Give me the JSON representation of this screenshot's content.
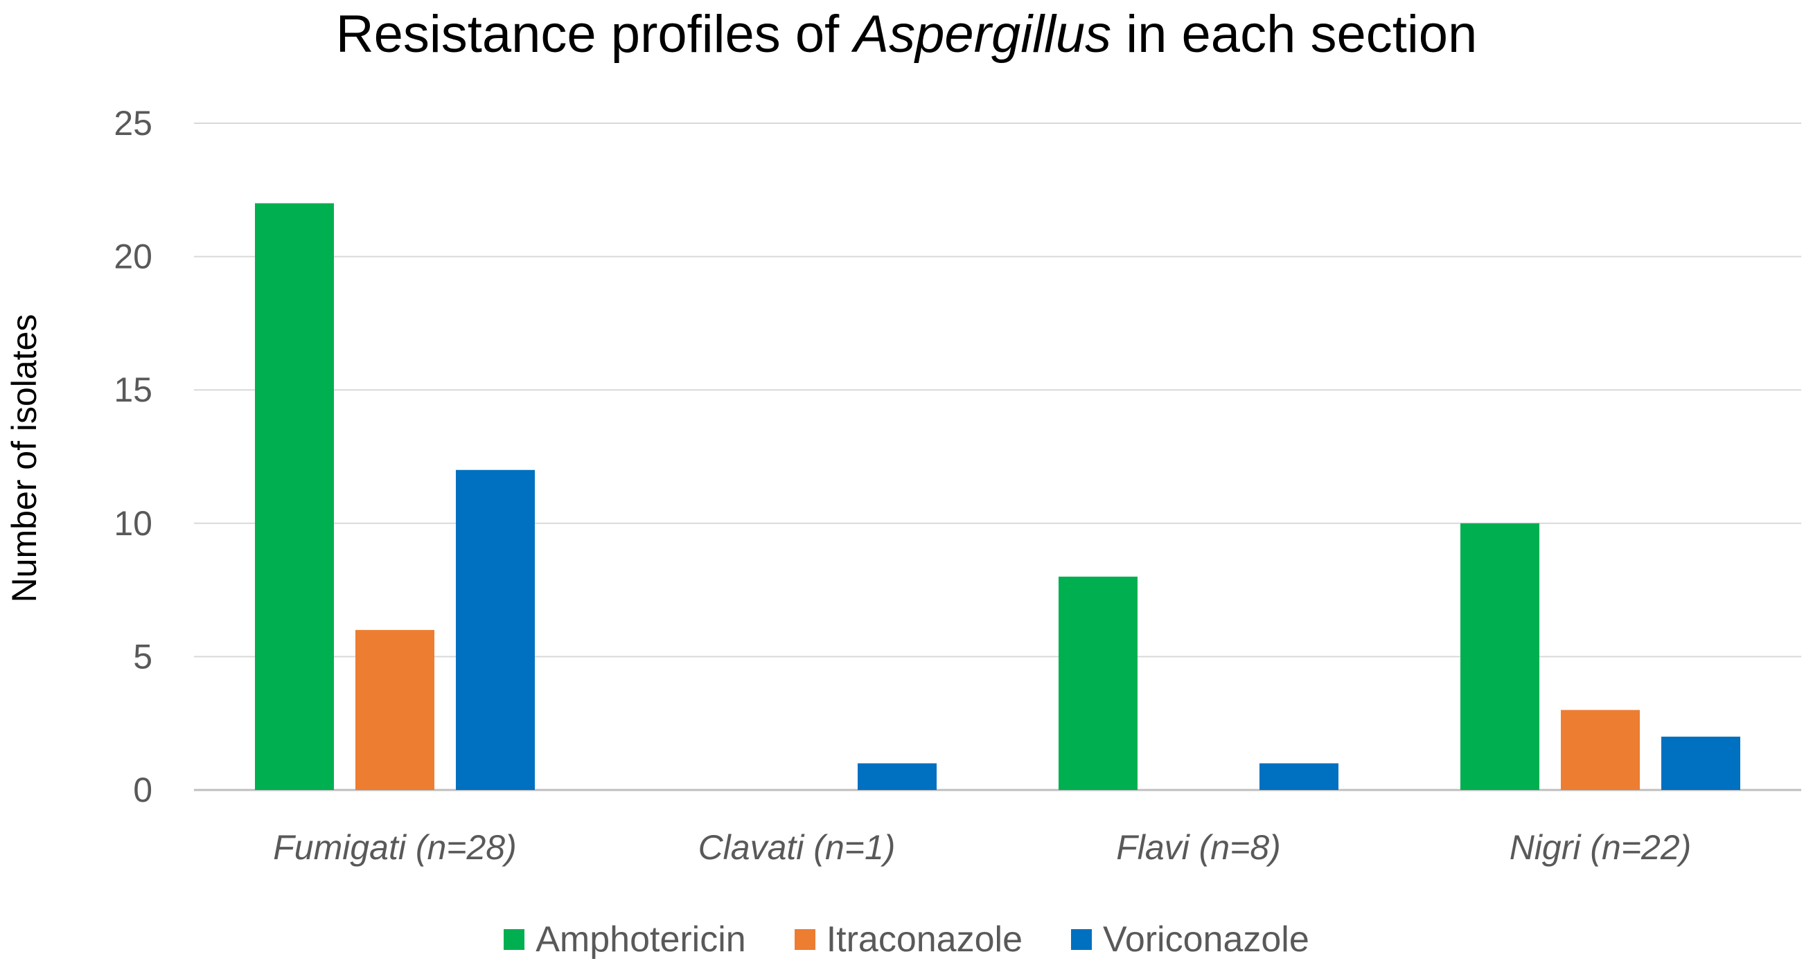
{
  "chart_data": {
    "type": "bar",
    "title": {
      "prefix": "Resistance profiles of ",
      "italic": "Aspergillus",
      "suffix": " in each section"
    },
    "xlabel": "",
    "ylabel": "Number of isolates",
    "ylim": [
      0,
      25
    ],
    "yticks": [
      0,
      5,
      10,
      15,
      20,
      25
    ],
    "grid": true,
    "legend_position": "bottom",
    "categories": [
      "Fumigati (n=28)",
      "Clavati (n=1)",
      "Flavi (n=8)",
      "Nigri (n=22)"
    ],
    "series": [
      {
        "name": "Amphotericin",
        "color": "#00b050",
        "values": [
          22,
          0,
          8,
          10
        ]
      },
      {
        "name": "Itraconazole",
        "color": "#ed7d31",
        "values": [
          6,
          0,
          0,
          3
        ]
      },
      {
        "name": "Voriconazole",
        "color": "#0070c0",
        "values": [
          12,
          1,
          1,
          2
        ]
      }
    ]
  }
}
